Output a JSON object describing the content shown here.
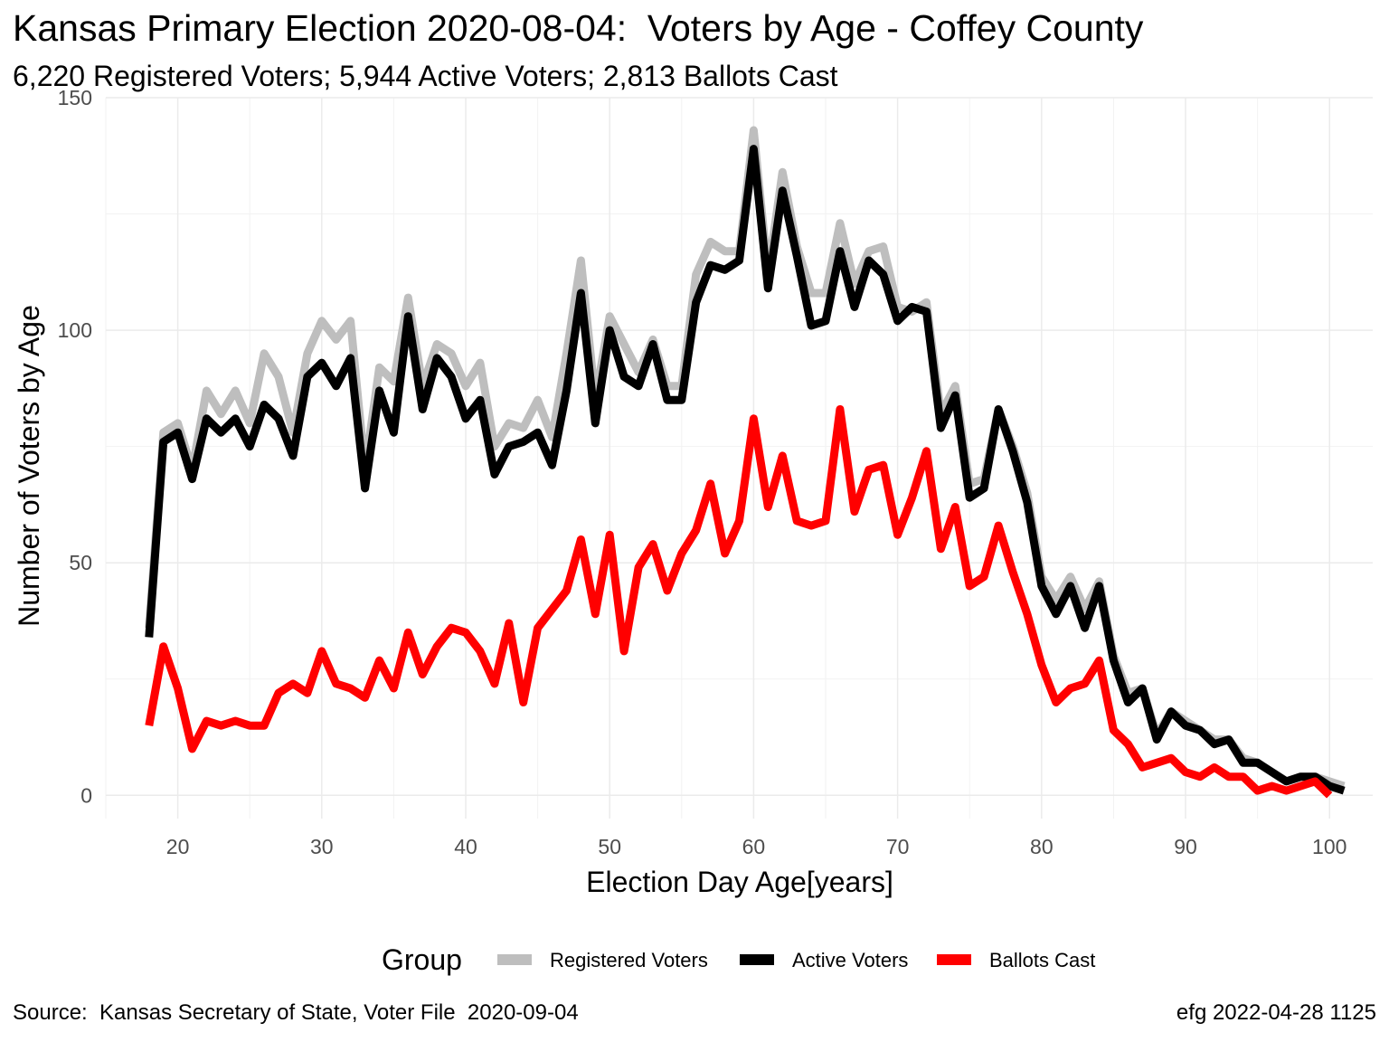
{
  "title": "Kansas Primary Election 2020-08-04:  Voters by Age - Coffey County",
  "subtitle": "6,220 Registered Voters; 5,944 Active Voters; 2,813 Ballots Cast",
  "caption_left": "Source:  Kansas Secretary of State, Voter File  2020-09-04",
  "caption_right": "efg 2022-04-28 1125",
  "chart_data": {
    "type": "line",
    "xlabel": "Election Day Age[years]",
    "ylabel": "Number of Voters by Age",
    "xlim": [
      15,
      103
    ],
    "ylim": [
      -5,
      150
    ],
    "x_ticks": [
      20,
      30,
      40,
      50,
      60,
      70,
      80,
      90,
      100
    ],
    "y_ticks": [
      0,
      50,
      100,
      150
    ],
    "grid": true,
    "legend_title": "Group",
    "legend_position": "bottom",
    "x": [
      18,
      19,
      20,
      21,
      22,
      23,
      24,
      25,
      26,
      27,
      28,
      29,
      30,
      31,
      32,
      33,
      34,
      35,
      36,
      37,
      38,
      39,
      40,
      41,
      42,
      43,
      44,
      45,
      46,
      47,
      48,
      49,
      50,
      51,
      52,
      53,
      54,
      55,
      56,
      57,
      58,
      59,
      60,
      61,
      62,
      63,
      64,
      65,
      66,
      67,
      68,
      69,
      70,
      71,
      72,
      73,
      74,
      75,
      76,
      77,
      78,
      79,
      80,
      81,
      82,
      83,
      84,
      85,
      86,
      87,
      88,
      89,
      90,
      91,
      92,
      93,
      94,
      95,
      96,
      97,
      98,
      99,
      100,
      101
    ],
    "series": [
      {
        "name": "Registered Voters",
        "color": "#bebebe",
        "values": [
          36,
          78,
          80,
          70,
          87,
          82,
          87,
          80,
          95,
          90,
          78,
          95,
          102,
          98,
          102,
          70,
          92,
          89,
          107,
          88,
          97,
          95,
          88,
          93,
          75,
          80,
          79,
          85,
          77,
          95,
          115,
          85,
          103,
          97,
          91,
          98,
          88,
          88,
          112,
          119,
          117,
          117,
          143,
          112,
          134,
          118,
          108,
          108,
          123,
          110,
          117,
          118,
          105,
          104,
          106,
          82,
          88,
          67,
          68,
          83,
          75,
          65,
          47,
          42,
          47,
          40,
          46,
          30,
          22,
          23,
          13,
          18,
          16,
          14,
          12,
          12,
          8,
          7,
          5,
          3,
          4,
          4,
          3,
          2
        ]
      },
      {
        "name": "Active Voters",
        "color": "#000000",
        "values": [
          34,
          76,
          78,
          68,
          81,
          78,
          81,
          75,
          84,
          81,
          73,
          90,
          93,
          88,
          94,
          66,
          87,
          78,
          103,
          83,
          94,
          90,
          81,
          85,
          69,
          75,
          76,
          78,
          71,
          87,
          108,
          80,
          100,
          90,
          88,
          97,
          85,
          85,
          106,
          114,
          113,
          115,
          139,
          109,
          130,
          116,
          101,
          102,
          117,
          105,
          115,
          112,
          102,
          105,
          104,
          79,
          86,
          64,
          66,
          83,
          74,
          63,
          45,
          39,
          45,
          36,
          45,
          29,
          20,
          23,
          12,
          18,
          15,
          14,
          11,
          12,
          7,
          7,
          5,
          3,
          4,
          4,
          2,
          1
        ]
      },
      {
        "name": "Ballots Cast",
        "color": "#ff0000",
        "values": [
          15,
          32,
          23,
          10,
          16,
          15,
          16,
          15,
          15,
          22,
          24,
          22,
          31,
          24,
          23,
          21,
          29,
          23,
          35,
          26,
          32,
          36,
          35,
          31,
          24,
          37,
          20,
          36,
          40,
          44,
          55,
          39,
          56,
          31,
          49,
          54,
          44,
          52,
          57,
          67,
          52,
          59,
          81,
          62,
          73,
          59,
          58,
          59,
          83,
          61,
          70,
          71,
          56,
          64,
          74,
          53,
          62,
          45,
          47,
          58,
          48,
          39,
          28,
          20,
          23,
          24,
          29,
          14,
          11,
          6,
          7,
          8,
          5,
          4,
          6,
          4,
          4,
          1,
          2,
          1,
          2,
          3,
          0,
          null
        ]
      }
    ]
  }
}
